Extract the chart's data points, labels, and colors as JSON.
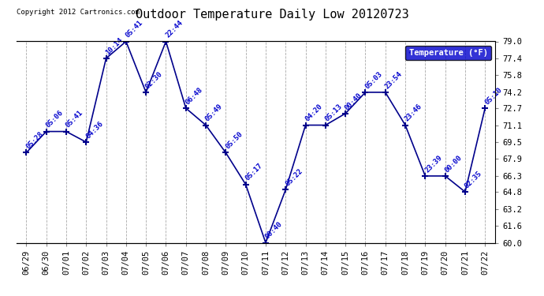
{
  "title": "Outdoor Temperature Daily Low 20120723",
  "copyright": "Copyright 2012 Cartronics.com",
  "legend_label": "Temperature (°F)",
  "ylim": [
    60.0,
    79.0
  ],
  "yticks": [
    60.0,
    61.6,
    63.2,
    64.8,
    66.3,
    67.9,
    69.5,
    71.1,
    72.7,
    74.2,
    75.8,
    77.4,
    79.0
  ],
  "dates": [
    "06/29",
    "06/30",
    "07/01",
    "07/02",
    "07/03",
    "07/04",
    "07/05",
    "07/06",
    "07/07",
    "07/08",
    "07/09",
    "07/10",
    "07/11",
    "07/12",
    "07/13",
    "07/14",
    "07/15",
    "07/16",
    "07/17",
    "07/18",
    "07/19",
    "07/20",
    "07/21",
    "07/22"
  ],
  "values": [
    68.5,
    70.5,
    70.5,
    69.5,
    77.4,
    79.0,
    74.2,
    79.0,
    72.7,
    71.1,
    68.5,
    65.5,
    60.0,
    65.0,
    71.1,
    71.1,
    72.2,
    74.2,
    74.2,
    71.1,
    66.3,
    66.3,
    64.8,
    72.7
  ],
  "labels": [
    "05:28",
    "05:06",
    "05:41",
    "04:36",
    "10:14",
    "05:41",
    "02:30",
    "22:44",
    "06:48",
    "05:49",
    "05:50",
    "05:17",
    "00:40",
    "05:22",
    "04:20",
    "05:13",
    "00:40",
    "05:03",
    "23:54",
    "23:46",
    "23:39",
    "00:00",
    "02:35",
    "05:10"
  ],
  "line_color": "#00008B",
  "marker_color": "#00008B",
  "label_color": "#0000CD",
  "background_color": "#ffffff",
  "grid_color": "#aaaaaa",
  "title_color": "#000000",
  "legend_bg": "#0000CC",
  "legend_fg": "#ffffff"
}
